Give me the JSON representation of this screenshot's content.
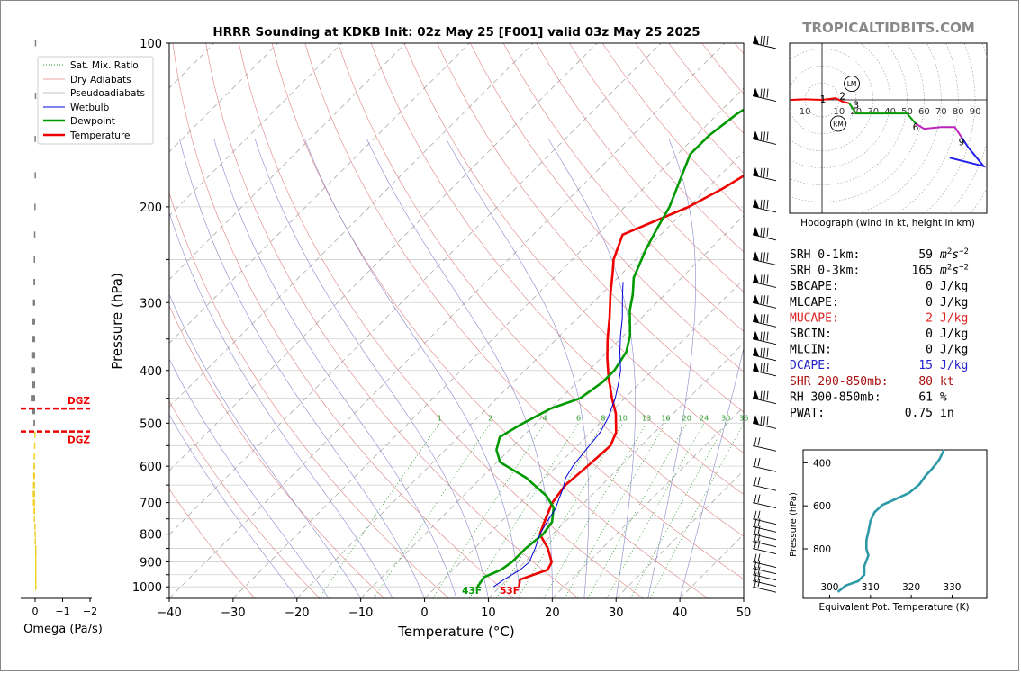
{
  "brand": "TROPICALTIDBITS.COM",
  "chart_data": [
    {
      "id": "skewt",
      "type": "line",
      "title": "HRRR Sounding at KDKB Init: 02z May 25 [F001] valid 03z May 25 2025",
      "xlabel": "Temperature (°C)",
      "ylabel": "Pressure (hPa)",
      "xlim": [
        -40,
        50
      ],
      "ylim": [
        1050,
        100
      ],
      "y_scale": "log",
      "grid": true,
      "x_ticks": [
        -40,
        -30,
        -20,
        -10,
        0,
        10,
        20,
        30,
        40,
        50
      ],
      "x_tick_labels": [
        "−40",
        "−30",
        "−20",
        "−10",
        "0",
        "10",
        "20",
        "30",
        "40",
        "50"
      ],
      "y_ticks": [
        100,
        200,
        300,
        400,
        500,
        600,
        700,
        800,
        900,
        1000
      ],
      "y_tick_labels": [
        "100",
        "200",
        "300",
        "400",
        "500",
        "600",
        "700",
        "800",
        "900",
        "1000"
      ],
      "legend": {
        "placement": "top-left",
        "entries": [
          {
            "label": "Sat. Mix. Ratio",
            "color": "#2e9e2e",
            "style": "dotted"
          },
          {
            "label": "Dry Adiabats",
            "color": "#e08080",
            "style": "solid"
          },
          {
            "label": "Pseudoadiabats",
            "color": "#aaaaaa",
            "style": "solid"
          },
          {
            "label": "Wetbulb",
            "color": "#0000dd",
            "style": "solid"
          },
          {
            "label": "Dewpoint",
            "color": "#009900",
            "style": "thick"
          },
          {
            "label": "Temperature",
            "color": "#ee0000",
            "style": "thick"
          }
        ]
      },
      "series": [
        {
          "name": "Temperature",
          "color": "#ee0000",
          "points": [
            [
              13,
              1000
            ],
            [
              12,
              970
            ],
            [
              14.8,
              930
            ],
            [
              14.2,
              900
            ],
            [
              11.5,
              850
            ],
            [
              8,
              800
            ],
            [
              6.5,
              750
            ],
            [
              5,
              700
            ],
            [
              4.3,
              650
            ],
            [
              4.8,
              600
            ],
            [
              5.2,
              550
            ],
            [
              4,
              520
            ],
            [
              1,
              480
            ],
            [
              -2,
              450
            ],
            [
              -6,
              410
            ],
            [
              -9,
              380
            ],
            [
              -12,
              350
            ],
            [
              -15,
              320
            ],
            [
              -18.5,
              290
            ],
            [
              -21.5,
              265
            ],
            [
              -23.5,
              250
            ],
            [
              -26,
              225
            ],
            [
              -20,
              200
            ],
            [
              -17.5,
              185
            ],
            [
              -15.5,
              170
            ],
            [
              -13.5,
              155
            ],
            [
              -10,
              138
            ],
            [
              -7,
              125
            ],
            [
              -4,
              115
            ],
            [
              -2,
              108
            ],
            [
              -1,
              103
            ],
            [
              -0.8,
              100
            ]
          ]
        },
        {
          "name": "Dewpoint",
          "color": "#009900",
          "points": [
            [
              6.5,
              1000
            ],
            [
              6,
              960
            ],
            [
              7.5,
              930
            ],
            [
              8,
              900
            ],
            [
              8,
              850
            ],
            [
              8.5,
              800
            ],
            [
              8,
              760
            ],
            [
              6,
              715
            ],
            [
              3,
              680
            ],
            [
              -3,
              630
            ],
            [
              -9.5,
              590
            ],
            [
              -12,
              560
            ],
            [
              -13.5,
              530
            ],
            [
              -12,
              500
            ],
            [
              -10,
              470
            ],
            [
              -7,
              450
            ],
            [
              -6,
              420
            ],
            [
              -6,
              400
            ],
            [
              -7,
              370
            ],
            [
              -9,
              345
            ],
            [
              -13,
              310
            ],
            [
              -15,
              290
            ],
            [
              -17.5,
              270
            ],
            [
              -20,
              240
            ],
            [
              -21.5,
              220
            ],
            [
              -23,
              200
            ],
            [
              -26,
              175
            ],
            [
              -28,
              160
            ],
            [
              -28,
              148
            ],
            [
              -27,
              135
            ],
            [
              -25,
              123
            ],
            [
              -23,
              115
            ],
            [
              -23,
              100
            ]
          ]
        },
        {
          "name": "Wetbulb",
          "color": "#0000dd",
          "points": [
            [
              9,
              1000
            ],
            [
              9.5,
              970
            ],
            [
              10.5,
              930
            ],
            [
              10.7,
              900
            ],
            [
              9.5,
              850
            ],
            [
              8,
              800
            ],
            [
              7.2,
              760
            ],
            [
              6.5,
              720
            ],
            [
              5.5,
              690
            ],
            [
              4.5,
              660
            ],
            [
              3.2,
              630
            ],
            [
              2.5,
              600
            ],
            [
              2,
              560
            ],
            [
              1.5,
              520
            ],
            [
              0.5,
              490
            ],
            [
              -1.5,
              450
            ],
            [
              -3.5,
              420
            ],
            [
              -5,
              400
            ],
            [
              -8,
              370
            ],
            [
              -10.5,
              345
            ],
            [
              -13,
              320
            ],
            [
              -16,
              295
            ],
            [
              -18.5,
              275
            ]
          ]
        }
      ],
      "mixing_ratio_labels": [
        "1",
        "2",
        "4",
        "6",
        "8",
        "10",
        "13",
        "16",
        "20",
        "24",
        "30",
        "36"
      ],
      "annotations": [
        {
          "text": "43F",
          "color": "#009900"
        },
        {
          "text": "53F",
          "color": "#ee0000"
        }
      ]
    },
    {
      "id": "omega",
      "type": "bar",
      "xlabel": "Omega (Pa/s)",
      "x_ticks": [
        0,
        -1,
        -2
      ],
      "x_tick_labels": [
        "0",
        "−1",
        "−2"
      ],
      "levels_hpa": [
        1000,
        975,
        950,
        925,
        900,
        875,
        850,
        825,
        800,
        775,
        750,
        725,
        700,
        675,
        650,
        625,
        600,
        575,
        550,
        525,
        500,
        475,
        450,
        425,
        400,
        375,
        350,
        325,
        300,
        275,
        250,
        225,
        200,
        175,
        150,
        125,
        100
      ],
      "omega_pa_s": [
        0,
        0,
        0,
        0,
        0,
        0,
        0,
        0.02,
        0.02,
        0.03,
        0.05,
        0.06,
        0.08,
        0.09,
        0.08,
        0.07,
        0.06,
        0.05,
        0.04,
        0.03,
        0.06,
        0.1,
        0.16,
        0.13,
        0.15,
        0.14,
        0.12,
        0.1,
        0.08,
        0.06,
        0.05,
        0.04,
        0.03,
        0.02,
        0.02,
        0.01,
        0.01
      ],
      "dgz": {
        "label": "DGZ",
        "top_hpa": 470,
        "bottom_hpa": 518,
        "color": "#ee0000"
      }
    },
    {
      "id": "hodograph",
      "type": "line",
      "xlabel": "Hodograph (wind in kt, height in km)",
      "ring_labels": [
        "10",
        "20",
        "30",
        "40",
        "50",
        "60",
        "70",
        "80",
        "90"
      ],
      "ring_label_left": "10",
      "height_labels": [
        "1",
        "2",
        "3",
        "6",
        "9"
      ],
      "markers": [
        "LM",
        "RM"
      ],
      "segments": [
        {
          "color": "#ee0000",
          "points": [
            [
              -18,
              0
            ],
            [
              -10,
              0.3
            ],
            [
              0,
              0
            ],
            [
              8,
              1
            ],
            [
              12,
              -1
            ],
            [
              16,
              -2
            ]
          ]
        },
        {
          "color": "#009900",
          "points": [
            [
              16,
              -2
            ],
            [
              20,
              -8
            ],
            [
              30,
              -8
            ],
            [
              44,
              -8
            ],
            [
              50,
              -8
            ],
            [
              55,
              -14
            ]
          ]
        },
        {
          "color": "#bb22bb",
          "points": [
            [
              55,
              -14
            ],
            [
              60,
              -17
            ],
            [
              70,
              -16
            ],
            [
              78,
              -16
            ],
            [
              82,
              -22
            ]
          ]
        },
        {
          "color": "#2222ee",
          "points": [
            [
              82,
              -22
            ],
            [
              86,
              -28
            ],
            [
              95,
              -39
            ],
            [
              75,
              -34
            ]
          ]
        }
      ]
    },
    {
      "id": "theta_e",
      "type": "line",
      "xlabel": "Equivalent Pot. Temperature (K)",
      "ylabel": "Pressure (hPa)",
      "x_ticks": [
        300,
        310,
        320,
        330
      ],
      "y_ticks": [
        400,
        600,
        800
      ],
      "series": [
        {
          "name": "Theta-E",
          "color": "#2e9aa8",
          "points": [
            [
              302,
              1000
            ],
            [
              304,
              970
            ],
            [
              307,
              950
            ],
            [
              308.5,
              920
            ],
            [
              308.5,
              880
            ],
            [
              309.5,
              830
            ],
            [
              309,
              800
            ],
            [
              309,
              760
            ],
            [
              309.5,
              720
            ],
            [
              310,
              670
            ],
            [
              311,
              630
            ],
            [
              313,
              595
            ],
            [
              316,
              570
            ],
            [
              319.5,
              540
            ],
            [
              322,
              500
            ],
            [
              323.5,
              460
            ],
            [
              325,
              430
            ],
            [
              326.3,
              400
            ],
            [
              327,
              380
            ],
            [
              328,
              340
            ]
          ]
        }
      ]
    }
  ],
  "indices": [
    {
      "label": "SRH 0-1km:",
      "value": "59",
      "unit": "m2s-2",
      "color": "#000000"
    },
    {
      "label": "SRH 0-3km:",
      "value": "165",
      "unit": "m2s-2",
      "color": "#000000"
    },
    {
      "label": "SBCAPE:",
      "value": "0",
      "unit": "J/kg",
      "color": "#000000"
    },
    {
      "label": "MLCAPE:",
      "value": "0",
      "unit": "J/kg",
      "color": "#000000"
    },
    {
      "label": "MUCAPE:",
      "value": "2",
      "unit": "J/kg",
      "color": "#dd2222"
    },
    {
      "label": "SBCIN:",
      "value": "0",
      "unit": "J/kg",
      "color": "#000000"
    },
    {
      "label": "MLCIN:",
      "value": "0",
      "unit": "J/kg",
      "color": "#000000"
    },
    {
      "label": "DCAPE:",
      "value": "15",
      "unit": "J/kg",
      "color": "#2222cc"
    },
    {
      "label": "SHR 200-850mb:",
      "value": "80",
      "unit": "kt",
      "color": "#aa1111"
    },
    {
      "label": "RH 300-850mb:",
      "value": "61",
      "unit": "%",
      "color": "#000000"
    },
    {
      "label": "PWAT:",
      "value": "0.75",
      "unit": "in",
      "color": "#000000"
    }
  ]
}
